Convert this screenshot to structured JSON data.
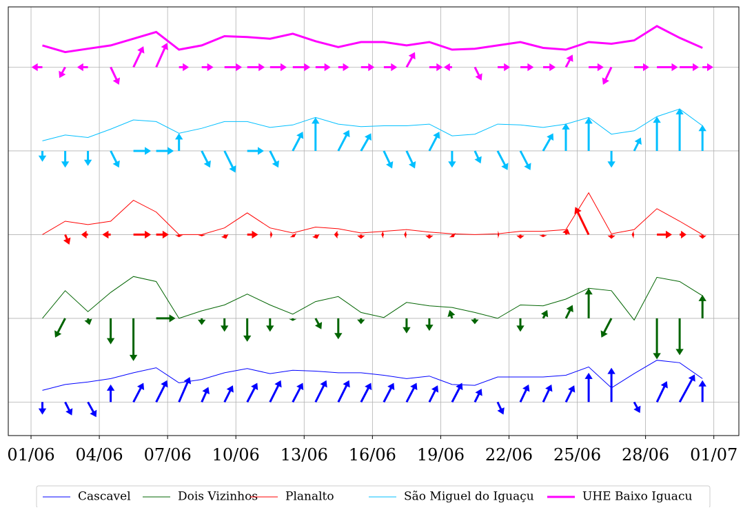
{
  "chart_data": {
    "type": "quiver-line",
    "x": [
      1.5,
      2.5,
      3.5,
      4.5,
      5.5,
      6.5,
      7.5,
      8.5,
      9.5,
      10.5,
      11.5,
      12.5,
      13.5,
      14.5,
      15.5,
      16.5,
      17.5,
      18.5,
      19.5,
      20.5,
      21.5,
      22.5,
      23.5,
      24.5,
      25.5,
      26.5,
      27.5,
      28.5,
      29.5,
      30.5
    ],
    "xlim": [
      0,
      32.1
    ],
    "xticks": [
      {
        "value": 1,
        "label": "01/06"
      },
      {
        "value": 4,
        "label": "04/06"
      },
      {
        "value": 7,
        "label": "07/06"
      },
      {
        "value": 10,
        "label": "10/06"
      },
      {
        "value": 13,
        "label": "13/06"
      },
      {
        "value": 16,
        "label": "16/06"
      },
      {
        "value": 19,
        "label": "19/06"
      },
      {
        "value": 22,
        "label": "22/06"
      },
      {
        "value": 25,
        "label": "25/06"
      },
      {
        "value": 28,
        "label": "28/06"
      },
      {
        "value": 31,
        "label": "01/07"
      }
    ],
    "ylim": [
      -0.4,
      4.72
    ],
    "yticks": [
      0,
      1,
      2,
      3,
      4
    ],
    "grid": true,
    "legend": "lower center",
    "series": [
      {
        "name": "Cascavel",
        "color": "#0000ff",
        "line_width": 1,
        "values": [
          0.14,
          0.21,
          0.24,
          0.28,
          0.35,
          0.41,
          0.23,
          0.27,
          0.35,
          0.4,
          0.34,
          0.38,
          0.37,
          0.35,
          0.35,
          0.32,
          0.28,
          0.31,
          0.21,
          0.2,
          0.3,
          0.3,
          0.3,
          0.32,
          0.42,
          0.17,
          0.34,
          0.5,
          0.47,
          0.28
        ],
        "u": [
          0,
          0.08,
          0.1,
          0,
          0.12,
          0.13,
          0.13,
          0.08,
          0.1,
          0.12,
          0.13,
          0.12,
          0.13,
          0.13,
          0.12,
          0.12,
          0.12,
          0.1,
          0.12,
          0.08,
          0.07,
          0.1,
          0.1,
          0.1,
          0,
          0,
          0.07,
          0.12,
          0.18,
          0
        ],
        "v": [
          -0.15,
          -0.16,
          -0.18,
          0.21,
          0.23,
          0.26,
          0.3,
          0.18,
          0.2,
          0.23,
          0.26,
          0.23,
          0.26,
          0.26,
          0.23,
          0.23,
          0.23,
          0.2,
          0.23,
          0.16,
          -0.15,
          0.21,
          0.21,
          0.2,
          0.35,
          0.41,
          -0.13,
          0.25,
          0.33,
          0.26
        ]
      },
      {
        "name": "Dois Vizinhos",
        "color": "#006400",
        "line_width": 1,
        "values": [
          1.0,
          1.33,
          1.08,
          1.31,
          1.5,
          1.44,
          1.0,
          1.09,
          1.16,
          1.29,
          1.16,
          1.05,
          1.2,
          1.26,
          1.07,
          1.01,
          1.19,
          1.15,
          1.13,
          1.07,
          1.0,
          1.16,
          1.15,
          1.23,
          1.36,
          1.33,
          0.98,
          1.49,
          1.44,
          1.27
        ],
        "u": [
          0,
          -0.12,
          0.02,
          0,
          0,
          0.23,
          0,
          0,
          0,
          0,
          0,
          0,
          0.07,
          0,
          0,
          0,
          0,
          0,
          -0.03,
          0,
          0,
          0,
          0.05,
          0.08,
          0,
          -0.12,
          0,
          0,
          0,
          0
        ],
        "v": [
          0,
          -0.23,
          -0.08,
          -0.31,
          -0.51,
          0,
          0,
          -0.08,
          -0.16,
          -0.28,
          -0.16,
          -0.03,
          -0.13,
          -0.25,
          -0.07,
          0,
          -0.18,
          -0.15,
          0.1,
          -0.07,
          0,
          -0.16,
          0.1,
          0.16,
          0.36,
          -0.23,
          0,
          -0.49,
          -0.44,
          0.28
        ]
      },
      {
        "name": "Planalto",
        "color": "#ff0000",
        "line_width": 1,
        "values": [
          2.0,
          2.16,
          2.12,
          2.16,
          2.41,
          2.27,
          2.0,
          2.0,
          2.08,
          2.26,
          2.08,
          2.02,
          2.09,
          2.07,
          2.02,
          2.04,
          2.06,
          2.03,
          2.01,
          2.0,
          2.01,
          2.04,
          2.04,
          2.06,
          2.5,
          2.01,
          2.06,
          2.31,
          2.16,
          2.0
        ],
        "u": [
          0,
          0.05,
          -0.08,
          -0.1,
          0.21,
          0.15,
          0,
          0,
          0.02,
          0.13,
          0.03,
          0.02,
          0.02,
          -0.05,
          0,
          -0.03,
          -0.03,
          0,
          0.02,
          0,
          0.02,
          0,
          0,
          0.02,
          -0.16,
          0,
          -0.03,
          0.18,
          0.08,
          0
        ],
        "v": [
          0,
          -0.12,
          0,
          0,
          0,
          0,
          -0.03,
          -0.02,
          -0.05,
          0,
          0,
          -0.03,
          -0.05,
          0,
          -0.05,
          0,
          0,
          -0.05,
          -0.03,
          0,
          0,
          -0.05,
          -0.03,
          0.07,
          0.33,
          -0.05,
          0,
          0,
          0,
          -0.05
        ]
      },
      {
        "name": "São Miguel do Iguaçu",
        "color": "#00bfff",
        "line_width": 1,
        "values": [
          3.12,
          3.19,
          3.16,
          3.26,
          3.37,
          3.35,
          3.21,
          3.27,
          3.35,
          3.35,
          3.28,
          3.31,
          3.4,
          3.32,
          3.29,
          3.3,
          3.3,
          3.32,
          3.18,
          3.2,
          3.32,
          3.31,
          3.28,
          3.32,
          3.4,
          3.2,
          3.24,
          3.41,
          3.5,
          3.3
        ],
        "u": [
          0,
          0,
          0,
          0.1,
          0.21,
          0.21,
          0,
          0.1,
          0.13,
          0.2,
          0.1,
          0.12,
          0,
          0.13,
          0.12,
          0.1,
          0.1,
          0.12,
          0,
          0.07,
          0.12,
          0.12,
          0.12,
          0,
          0,
          0,
          0.08,
          0,
          0,
          0
        ],
        "v": [
          -0.13,
          -0.2,
          -0.18,
          -0.2,
          0,
          0,
          0.21,
          -0.2,
          -0.26,
          0,
          -0.2,
          0.23,
          0.4,
          0.25,
          0.21,
          -0.21,
          -0.21,
          0.23,
          -0.2,
          -0.15,
          -0.23,
          -0.23,
          0.21,
          0.33,
          0.4,
          -0.2,
          0.16,
          0.41,
          0.51,
          0.31
        ]
      },
      {
        "name": "UHE Baixo Iguacu",
        "color": "#ff00ff",
        "line_width": 3,
        "values": [
          4.26,
          4.18,
          4.22,
          4.26,
          4.34,
          4.42,
          4.21,
          4.26,
          4.37,
          4.36,
          4.34,
          4.4,
          4.31,
          4.24,
          4.3,
          4.3,
          4.26,
          4.3,
          4.21,
          4.22,
          4.26,
          4.3,
          4.23,
          4.21,
          4.3,
          4.28,
          4.32,
          4.49,
          4.35,
          4.23
        ],
        "u": [
          -0.13,
          -0.07,
          -0.13,
          0.1,
          0.12,
          0.13,
          0.12,
          0.14,
          0.21,
          0.21,
          0.2,
          0.21,
          0.18,
          0.13,
          0.16,
          0.16,
          0.1,
          0.16,
          -0.1,
          0.08,
          0.15,
          0.16,
          0.15,
          0.08,
          0.18,
          -0.1,
          0.18,
          0.25,
          0.23,
          0.13
        ],
        "v": [
          0,
          -0.13,
          0,
          -0.21,
          0.25,
          0.29,
          0,
          0,
          0,
          0,
          0,
          0,
          0,
          0,
          0,
          0,
          0.18,
          0,
          0,
          -0.16,
          0,
          0,
          0,
          0.15,
          0,
          -0.21,
          0,
          0,
          0,
          0
        ]
      }
    ]
  }
}
